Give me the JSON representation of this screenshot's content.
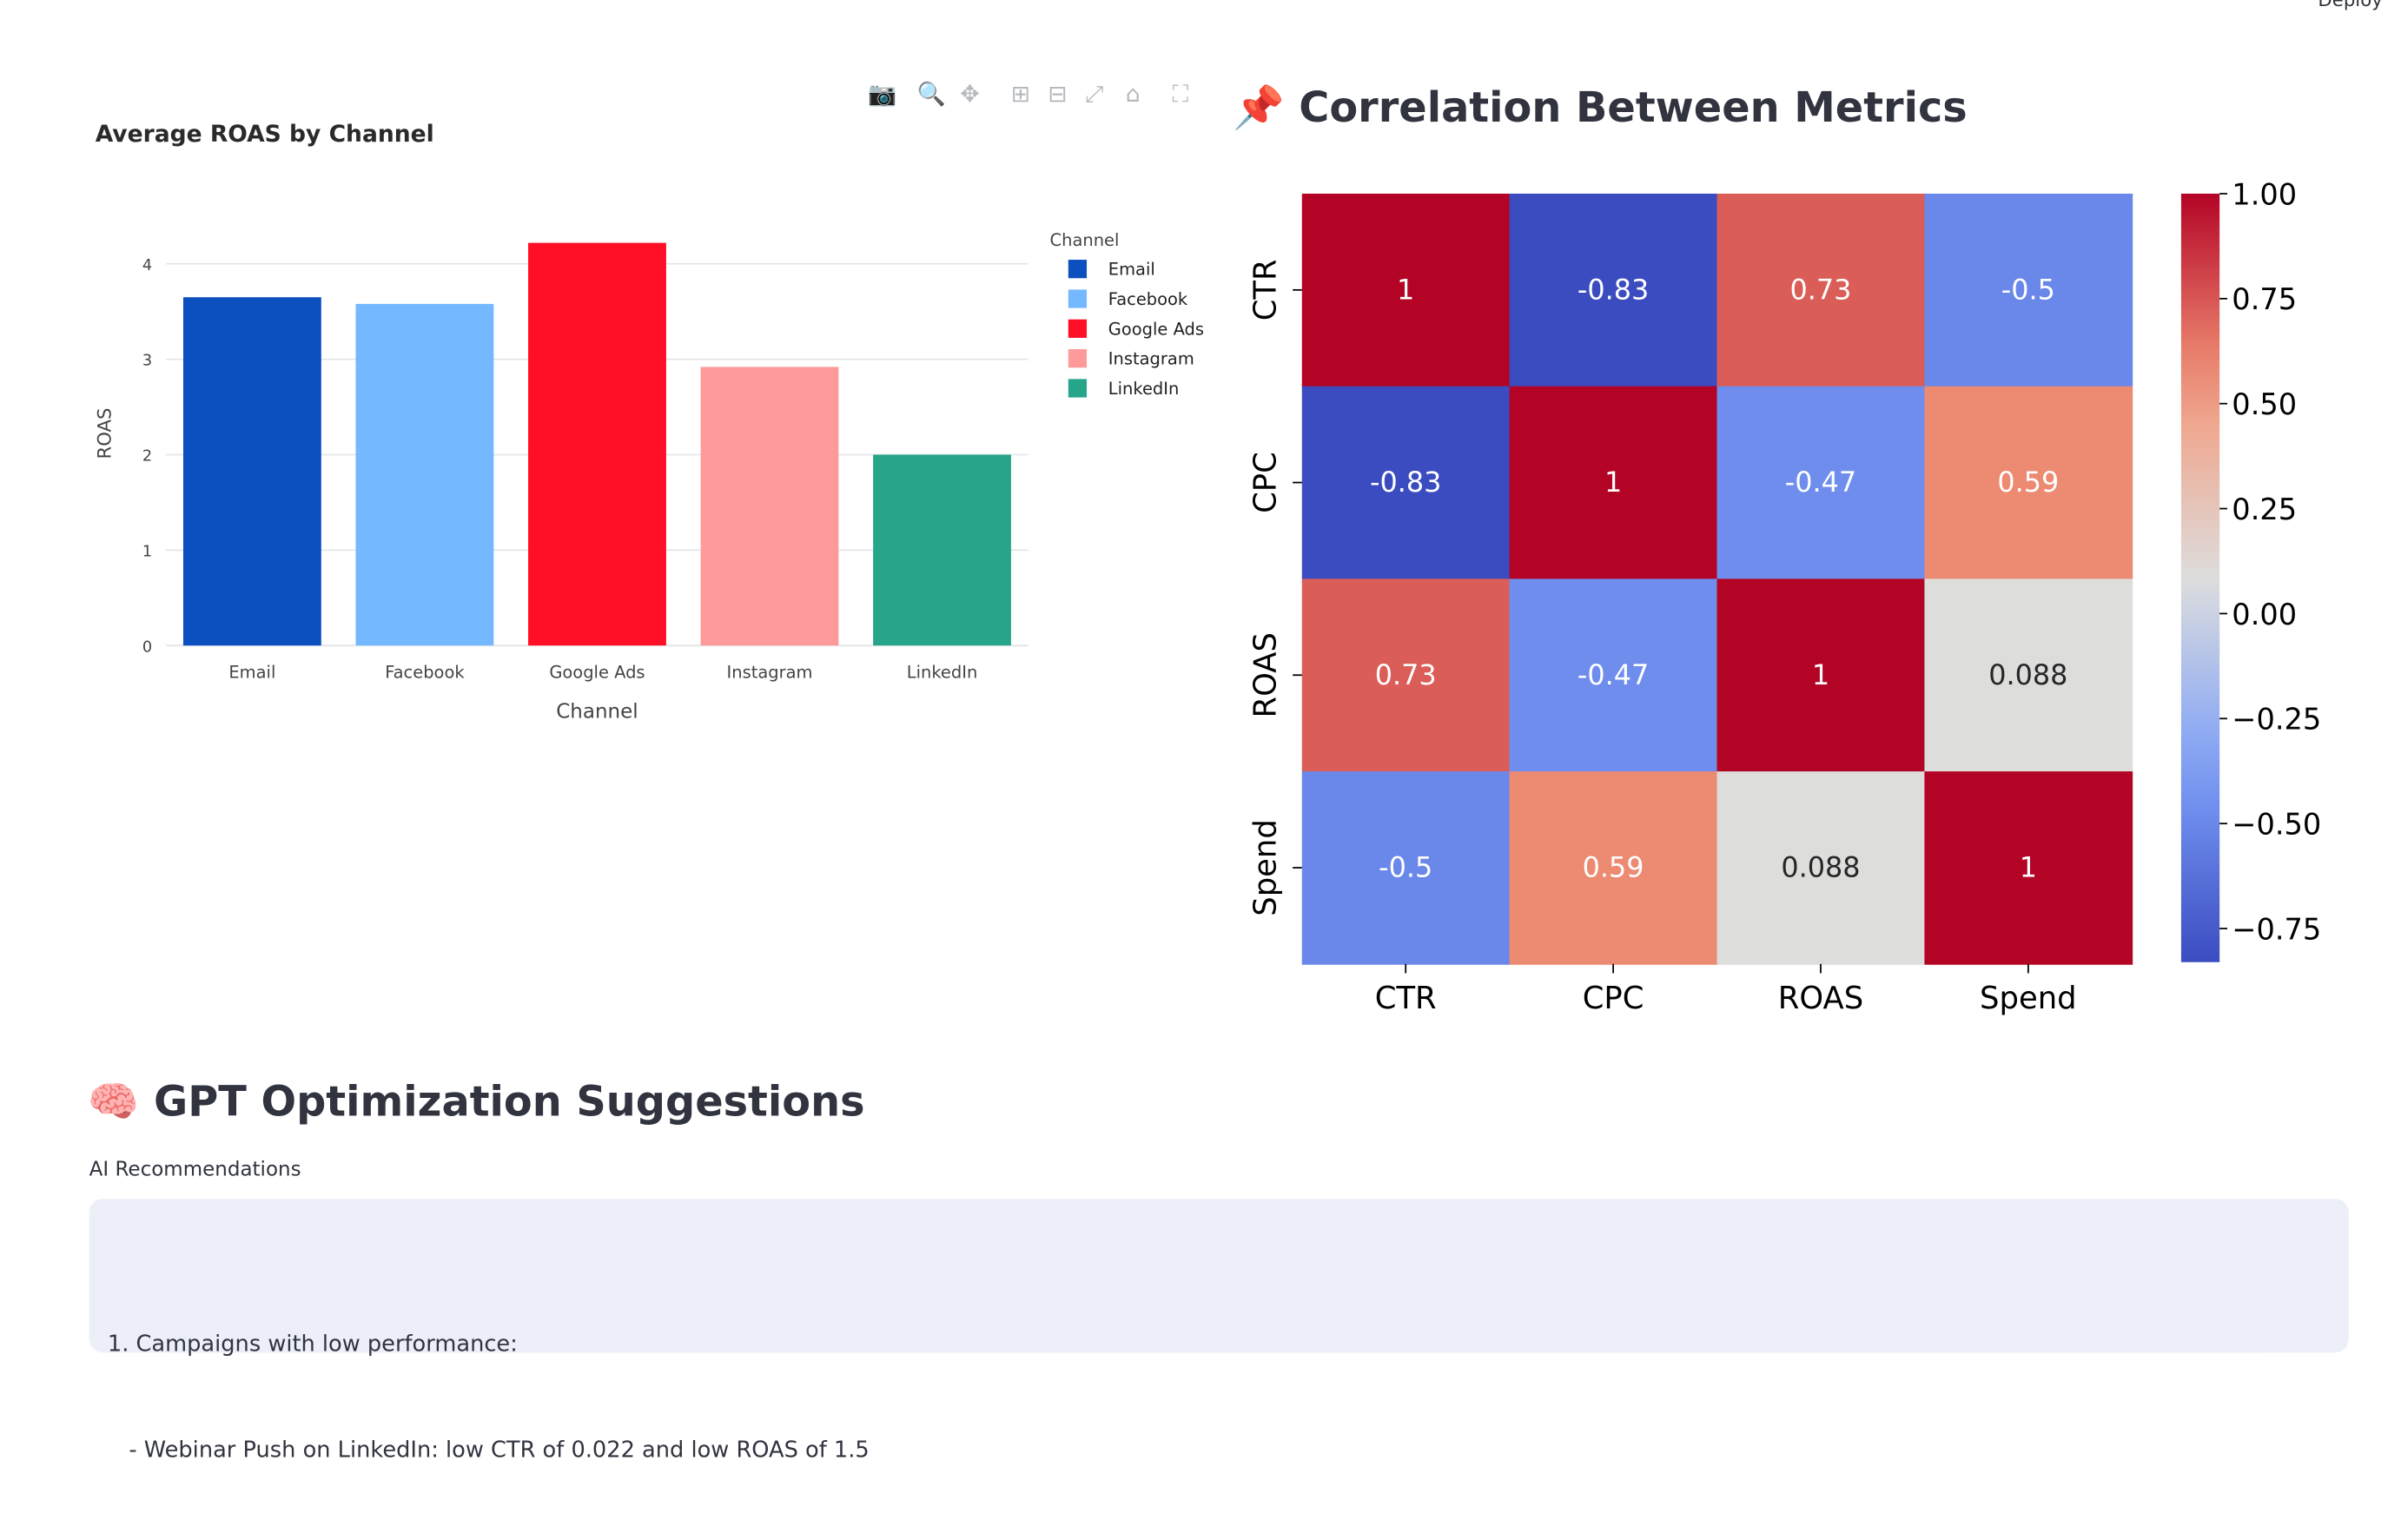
{
  "header": {
    "deploy_label": "Deploy"
  },
  "modebar": {
    "icons": [
      "camera-icon",
      "zoom-icon",
      "pan-icon",
      "zoom-in-icon",
      "zoom-out-icon",
      "autoscale-icon",
      "reset-axes-icon",
      "fullscreen-icon"
    ]
  },
  "bar_chart": {
    "title": "Average ROAS by Channel",
    "legend_title": "Channel"
  },
  "correlation": {
    "emoji": "📌",
    "title": "Correlation Between Metrics"
  },
  "gpt": {
    "emoji": "🧠",
    "title": "GPT Optimization Suggestions",
    "caption": "AI Recommendations",
    "lines": [
      "1. Campaigns with low performance:",
      "   - Webinar Push on LinkedIn: low CTR of 0.022 and low ROAS of 1.5"
    ]
  },
  "colors": {
    "Email": "#0c4fbf",
    "Facebook": "#74b9ff",
    "Google Ads": "#ff0f26",
    "Instagram": "#ff9a9a",
    "LinkedIn": "#27a58a",
    "panel_bg": "#eceff7"
  },
  "chart_data": [
    {
      "type": "bar",
      "title": "Average ROAS by Channel",
      "categories": [
        "Email",
        "Facebook",
        "Google Ads",
        "Instagram",
        "LinkedIn"
      ],
      "values": [
        3.65,
        3.58,
        4.22,
        2.92,
        2.0
      ],
      "xlabel": "Channel",
      "ylabel": "ROAS",
      "ylim": [
        0,
        4.22
      ],
      "yticks": [
        "0",
        "1",
        "2",
        "3",
        "4"
      ],
      "legend": {
        "title": "Channel",
        "placement": "right",
        "entries": [
          "Email",
          "Facebook",
          "Google Ads",
          "Instagram",
          "LinkedIn"
        ]
      },
      "grid": true
    },
    {
      "type": "heatmap",
      "title": "Correlation Between Metrics",
      "rows": [
        "CTR",
        "CPC",
        "ROAS",
        "Spend"
      ],
      "cols": [
        "CTR",
        "CPC",
        "ROAS",
        "Spend"
      ],
      "values": [
        [
          1,
          -0.83,
          0.73,
          -0.5
        ],
        [
          -0.83,
          1,
          -0.47,
          0.59
        ],
        [
          0.73,
          -0.47,
          1,
          0.088
        ],
        [
          -0.5,
          0.59,
          0.088,
          1
        ]
      ],
      "labels": [
        [
          "1",
          "-0.83",
          "0.73",
          "-0.5"
        ],
        [
          "-0.83",
          "1",
          "-0.47",
          "0.59"
        ],
        [
          "0.73",
          "-0.47",
          "1",
          "0.088"
        ],
        [
          "-0.5",
          "0.59",
          "0.088",
          "1"
        ]
      ],
      "colorbar": {
        "range": [
          -0.83,
          1.0
        ],
        "ticks": [
          "1.00",
          "0.75",
          "0.50",
          "0.25",
          "0.00",
          "−0.25",
          "−0.50",
          "−0.75"
        ],
        "colormap": "coolwarm"
      }
    }
  ]
}
